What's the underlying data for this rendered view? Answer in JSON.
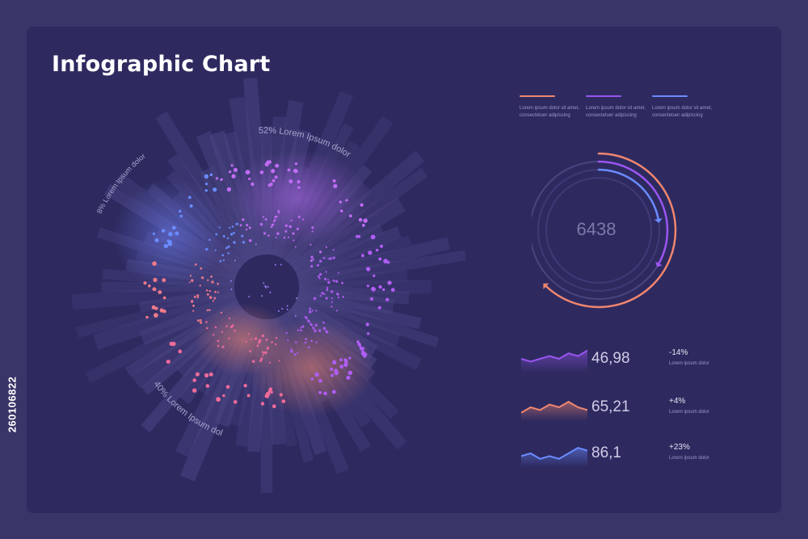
{
  "title": "Infographic Chart",
  "side_id": "260106822",
  "colors": {
    "background": "#3a3568",
    "panel": "#2e2a60",
    "accent_orange": "#f0866e",
    "accent_purple": "#9a55f0",
    "accent_blue": "#6a8cff",
    "accent_pink": "#f06a9a"
  },
  "legend": [
    {
      "text": "Lorem ipsum dolor sit amet,\nconsectetuer adipiscing",
      "color": "#f0866e"
    },
    {
      "text": "Lorem ipsum dolor sit amet,\nconsectetuer adipiscing",
      "color": "#9a55f0"
    },
    {
      "text": "Lorem ipsum dolor sit amet,\nconsectetuer adipiscing",
      "color": "#6a8cff"
    }
  ],
  "chart_data": [
    {
      "type": "radial",
      "segments": [
        {
          "label": "52% Lorem Ipsum dolor",
          "value": 52
        },
        {
          "label": "8% Lorem Ipsum dolor",
          "value": 8
        },
        {
          "label": "40% Lorem Ipsum dolor",
          "value": 40
        }
      ]
    },
    {
      "type": "ring",
      "value": "6438",
      "arcs": [
        {
          "color": "#f0866e",
          "fraction": 0.62
        },
        {
          "color": "#9a55f0",
          "fraction": 0.33
        },
        {
          "color": "#6a8cff",
          "fraction": 0.22
        }
      ]
    },
    {
      "type": "area",
      "rows": [
        {
          "value": "46,98",
          "change": "-14%",
          "label": "Lorem ipsum dolor",
          "color": "#9a55f0",
          "points": [
            5,
            4,
            5,
            6,
            5,
            7,
            6,
            8
          ]
        },
        {
          "value": "65,21",
          "change": "+4%",
          "label": "Lorem ipsum dolor",
          "color": "#f0866e",
          "points": [
            3,
            5,
            4,
            6,
            5,
            7,
            5,
            4
          ]
        },
        {
          "value": "86,1",
          "change": "+23%",
          "label": "Lorem ipsum dolor",
          "color": "#6a8cff",
          "points": [
            4,
            5,
            3,
            4,
            3,
            5,
            7,
            6
          ]
        }
      ]
    }
  ]
}
